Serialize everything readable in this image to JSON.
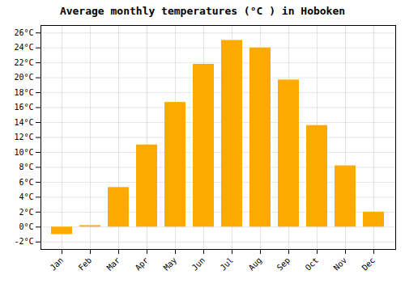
{
  "chart_data": {
    "type": "bar",
    "title": "Average monthly temperatures (°C ) in Hoboken",
    "categories": [
      "Jan",
      "Feb",
      "Mar",
      "Apr",
      "May",
      "Jun",
      "Jul",
      "Aug",
      "Sep",
      "Oct",
      "Nov",
      "Dec"
    ],
    "values": [
      -1.0,
      0.2,
      5.3,
      11.0,
      16.7,
      21.8,
      25.0,
      24.0,
      19.7,
      13.6,
      8.2,
      2.0
    ],
    "color": "#FFAA00",
    "ylim": [
      -3,
      27
    ],
    "yticks": [
      {
        "value": -2,
        "label": "-2°C"
      },
      {
        "value": 0,
        "label": "0°C"
      },
      {
        "value": 2,
        "label": "2°C"
      },
      {
        "value": 4,
        "label": "4°C"
      },
      {
        "value": 6,
        "label": "6°C"
      },
      {
        "value": 8,
        "label": "8°C"
      },
      {
        "value": 10,
        "label": "10°C"
      },
      {
        "value": 12,
        "label": "12°C"
      },
      {
        "value": 14,
        "label": "14°C"
      },
      {
        "value": 16,
        "label": "16°C"
      },
      {
        "value": 18,
        "label": "18°C"
      },
      {
        "value": 20,
        "label": "20°C"
      },
      {
        "value": 22,
        "label": "22°C"
      },
      {
        "value": 24,
        "label": "24°C"
      },
      {
        "value": 26,
        "label": "26°C"
      }
    ],
    "grid": true
  }
}
